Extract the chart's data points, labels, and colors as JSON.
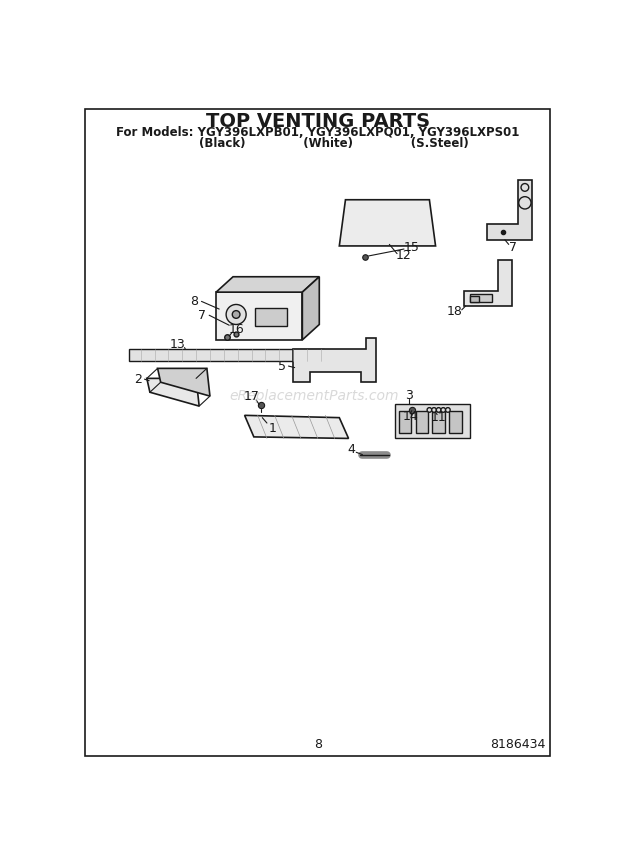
{
  "title": "TOP VENTING PARTS",
  "subtitle_line1": "For Models: YGY396LXPB01, YGY396LXPQ01, YGY396LXPS01",
  "subtitle_line2": "        (Black)              (White)              (S.Steel)",
  "page_number": "8",
  "part_number": "8186434",
  "watermark": "eReplacementParts.com",
  "bg_color": "#ffffff",
  "line_color": "#1a1a1a"
}
